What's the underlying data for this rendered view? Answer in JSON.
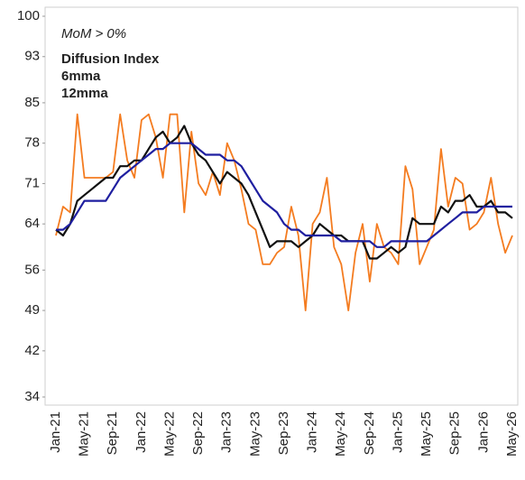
{
  "chart_data": {
    "type": "line",
    "subtitle": "MoM > 0%",
    "categories": [
      "Jan-21",
      null,
      null,
      null,
      "May-21",
      null,
      null,
      null,
      "Sep-21",
      null,
      null,
      null,
      "Jan-22",
      null,
      null,
      null,
      "May-22",
      null,
      null,
      null,
      "Sep-22",
      null,
      null,
      null,
      "Jan-23",
      null,
      null,
      null,
      "May-23",
      null,
      null,
      null,
      "Sep-23",
      null,
      null,
      null,
      "Jan-24",
      null,
      null,
      null,
      "May-24",
      null,
      null,
      null,
      "Sep-24",
      null,
      null,
      null,
      "Jan-25",
      null,
      null,
      null,
      "May-25",
      null,
      null,
      null,
      "Sep-25",
      null,
      null,
      null,
      "Jan-26",
      null,
      null,
      null,
      "May-26"
    ],
    "series": [
      {
        "name": "Diffusion Index",
        "color": "#f47c20",
        "values": [
          62,
          67,
          66,
          83,
          72,
          72,
          72,
          72,
          73,
          83,
          75,
          72,
          82,
          83,
          79,
          72,
          83,
          83,
          66,
          80,
          71,
          69,
          73,
          69,
          78,
          75,
          70,
          64,
          63,
          57,
          57,
          59,
          60,
          67,
          62,
          49,
          64,
          66,
          72,
          60,
          57,
          49,
          59,
          64,
          54,
          64,
          60,
          59,
          57,
          74,
          70,
          57,
          60,
          63,
          77,
          67,
          72,
          71,
          63,
          64,
          66,
          72,
          64,
          59,
          62
        ]
      },
      {
        "name": "6mma",
        "color": "#111111",
        "values": [
          63,
          62,
          64,
          68,
          69,
          70,
          71,
          72,
          72,
          74,
          74,
          75,
          75,
          77,
          79,
          80,
          78,
          79,
          81,
          78,
          76,
          75,
          73,
          71,
          73,
          72,
          71,
          69,
          66,
          63,
          60,
          61,
          61,
          61,
          60,
          61,
          62,
          64,
          63,
          62,
          62,
          61,
          61,
          61,
          58,
          58,
          59,
          60,
          59,
          60,
          65,
          64,
          64,
          64,
          67,
          66,
          68,
          68,
          69,
          67,
          67,
          68,
          66,
          66,
          65
        ]
      },
      {
        "name": "12mma",
        "color": "#1f1fa0",
        "values": [
          63,
          63,
          64,
          66,
          68,
          68,
          68,
          68,
          70,
          72,
          73,
          74,
          75,
          76,
          77,
          77,
          78,
          78,
          78,
          78,
          77,
          76,
          76,
          76,
          75,
          75,
          74,
          72,
          70,
          68,
          67,
          66,
          64,
          63,
          63,
          62,
          62,
          62,
          62,
          62,
          61,
          61,
          61,
          61,
          61,
          60,
          60,
          61,
          61,
          61,
          61,
          61,
          61,
          62,
          63,
          64,
          65,
          66,
          66,
          66,
          67,
          67,
          67,
          67,
          67
        ]
      }
    ],
    "ylim": [
      34,
      100
    ],
    "yticks": [
      34,
      42,
      49,
      56,
      64,
      71,
      78,
      85,
      93,
      100
    ]
  }
}
